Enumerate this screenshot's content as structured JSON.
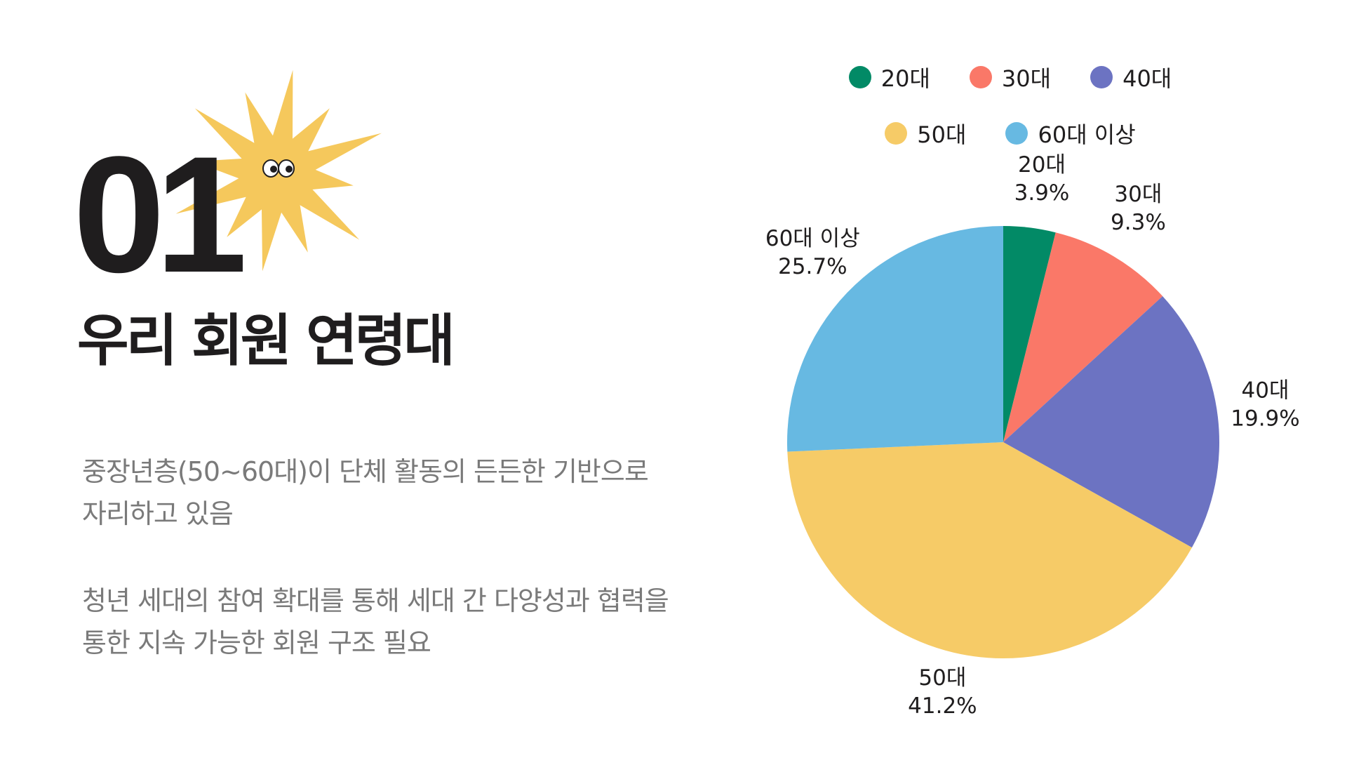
{
  "header": {
    "number": "01",
    "title": "우리 회원 연령대"
  },
  "paragraphs": [
    {
      "lines": [
        "중장년층(50~60대)이 단체 활동의 든든한 기반으로",
        "자리하고 있음"
      ]
    },
    {
      "lines": [
        "청년 세대의 참여 확대를 통해 세대 간 다양성과 협력을",
        "통한 지속 가능한 회원 구조 필요"
      ]
    }
  ],
  "mascot": {
    "icon": "star-burst-character-icon",
    "color": "#f5c85c"
  },
  "chart_data": {
    "type": "pie",
    "title": "",
    "categories": [
      "20대",
      "30대",
      "40대",
      "50대",
      "60대 이상"
    ],
    "values": [
      3.9,
      9.3,
      19.9,
      41.2,
      25.7
    ],
    "value_labels": [
      "3.9%",
      "9.3%",
      "19.9%",
      "41.2%",
      "25.7%"
    ],
    "colors": [
      "#028a66",
      "#fa7868",
      "#6c73c2",
      "#f6cb67",
      "#67b9e2"
    ],
    "start_angle": "12 o'clock",
    "direction": "clockwise",
    "legend": "top",
    "legend_rows": [
      [
        "20대",
        "30대",
        "40대"
      ],
      [
        "50대",
        "60대 이상"
      ]
    ],
    "data_labels": "outside"
  }
}
